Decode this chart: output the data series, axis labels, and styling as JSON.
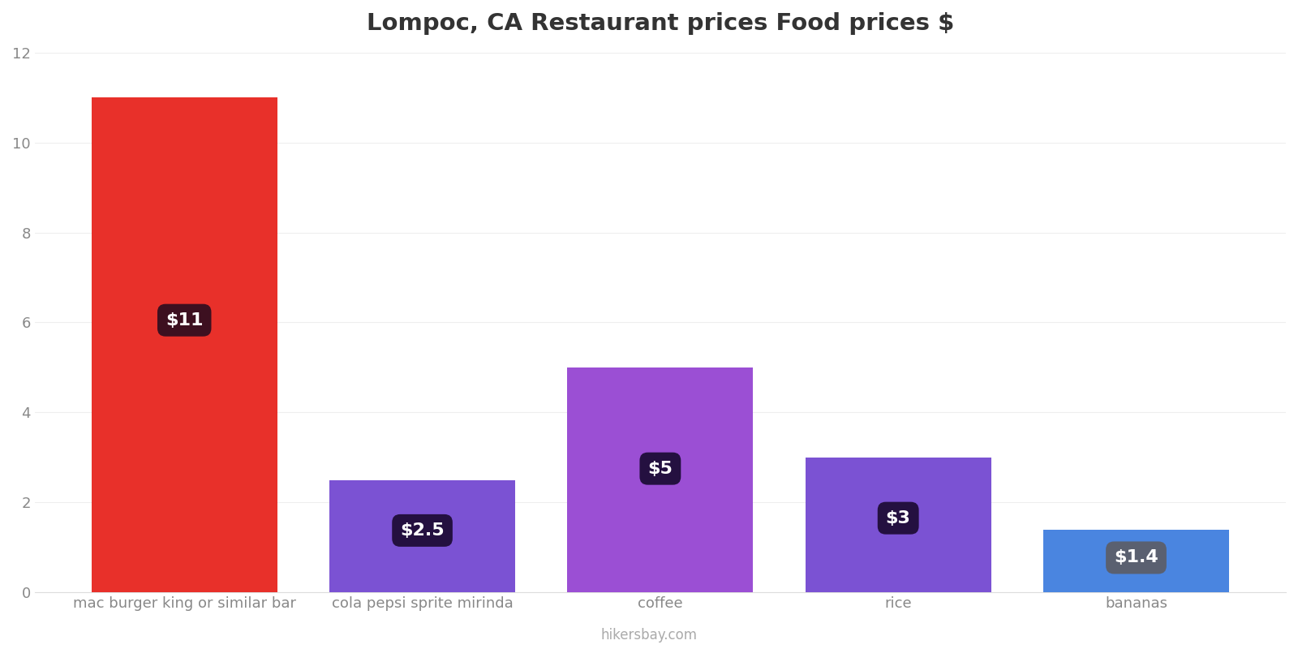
{
  "title": "Lompoc, CA Restaurant prices Food prices $",
  "categories": [
    "mac burger king or similar bar",
    "cola pepsi sprite mirinda",
    "coffee",
    "rice",
    "bananas"
  ],
  "values": [
    11,
    2.5,
    5,
    3,
    1.4
  ],
  "bar_colors": [
    "#e8302a",
    "#7b52d3",
    "#9b4fd4",
    "#7b52d3",
    "#4a85e0"
  ],
  "label_texts": [
    "$11",
    "$2.5",
    "$5",
    "$3",
    "$1.4"
  ],
  "label_box_colors": [
    "#3d1020",
    "#241040",
    "#241040",
    "#241040",
    "#5a6070"
  ],
  "ylim": [
    0,
    12
  ],
  "yticks": [
    0,
    2,
    4,
    6,
    8,
    10,
    12
  ],
  "title_fontsize": 21,
  "tick_fontsize": 13,
  "label_fontsize": 16,
  "watermark": "hikersbay.com",
  "background_color": "#ffffff",
  "grid_color": "#eeeeee",
  "bar_width": 0.78
}
